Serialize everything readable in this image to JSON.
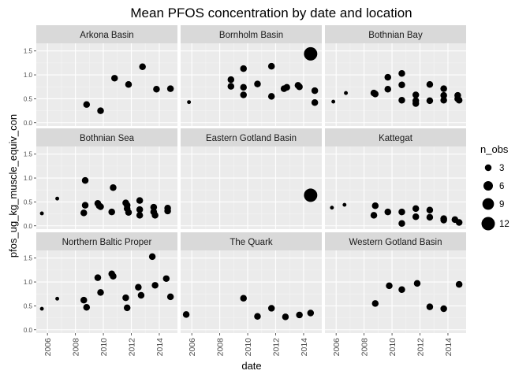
{
  "chart_data": {
    "type": "scatter",
    "title": "Mean PFOS concentration by date and location",
    "xlabel": "date",
    "ylabel": "pfos_ug_kg_muscle_equiv_con",
    "xlim": [
      2005.2,
      2015.3
    ],
    "ylim": [
      -0.07,
      1.66
    ],
    "x_ticks": [
      2006,
      2008,
      2010,
      2012,
      2014
    ],
    "x_tick_labels": [
      "2006",
      "2008",
      "2010",
      "2012",
      "2014"
    ],
    "y_ticks": [
      0.0,
      0.5,
      1.0,
      1.5
    ],
    "y_tick_labels": [
      "0.0",
      "0.5",
      "1.0",
      "1.5"
    ],
    "grid": true,
    "legend": {
      "title": "n_obs",
      "position": "right",
      "entries": [
        {
          "label": "3",
          "size": 3
        },
        {
          "label": "6",
          "size": 6
        },
        {
          "label": "9",
          "size": 9
        },
        {
          "label": "12",
          "size": 12
        }
      ]
    },
    "facets": [
      {
        "name": "Arkona Basin",
        "points": [
          {
            "x": 2008.8,
            "y": 0.38,
            "n": 3
          },
          {
            "x": 2009.8,
            "y": 0.25,
            "n": 3
          },
          {
            "x": 2010.8,
            "y": 0.93,
            "n": 3
          },
          {
            "x": 2011.8,
            "y": 0.8,
            "n": 3
          },
          {
            "x": 2012.8,
            "y": 1.17,
            "n": 3
          },
          {
            "x": 2013.8,
            "y": 0.7,
            "n": 3
          },
          {
            "x": 2014.8,
            "y": 0.71,
            "n": 3
          }
        ]
      },
      {
        "name": "Bornholm Basin",
        "points": [
          {
            "x": 2005.8,
            "y": 0.43,
            "n": 1
          },
          {
            "x": 2008.8,
            "y": 0.9,
            "n": 3
          },
          {
            "x": 2008.8,
            "y": 0.76,
            "n": 3
          },
          {
            "x": 2009.7,
            "y": 1.13,
            "n": 3
          },
          {
            "x": 2009.7,
            "y": 0.74,
            "n": 3
          },
          {
            "x": 2009.7,
            "y": 0.58,
            "n": 3
          },
          {
            "x": 2010.7,
            "y": 0.81,
            "n": 3
          },
          {
            "x": 2011.7,
            "y": 1.18,
            "n": 3
          },
          {
            "x": 2011.7,
            "y": 0.55,
            "n": 3
          },
          {
            "x": 2012.6,
            "y": 0.71,
            "n": 3
          },
          {
            "x": 2012.8,
            "y": 0.74,
            "n": 3
          },
          {
            "x": 2013.6,
            "y": 0.78,
            "n": 3
          },
          {
            "x": 2013.7,
            "y": 0.75,
            "n": 3
          },
          {
            "x": 2014.5,
            "y": 1.44,
            "n": 12
          },
          {
            "x": 2014.8,
            "y": 0.67,
            "n": 3
          },
          {
            "x": 2014.8,
            "y": 0.42,
            "n": 3
          }
        ]
      },
      {
        "name": "Bothnian Bay",
        "points": [
          {
            "x": 2005.8,
            "y": 0.44,
            "n": 1
          },
          {
            "x": 2006.7,
            "y": 0.62,
            "n": 1
          },
          {
            "x": 2008.7,
            "y": 0.62,
            "n": 3
          },
          {
            "x": 2008.8,
            "y": 0.6,
            "n": 3
          },
          {
            "x": 2009.7,
            "y": 0.95,
            "n": 3
          },
          {
            "x": 2009.7,
            "y": 0.7,
            "n": 3
          },
          {
            "x": 2010.7,
            "y": 1.03,
            "n": 3
          },
          {
            "x": 2010.7,
            "y": 0.79,
            "n": 3
          },
          {
            "x": 2010.7,
            "y": 0.47,
            "n": 3
          },
          {
            "x": 2011.7,
            "y": 0.58,
            "n": 3
          },
          {
            "x": 2011.7,
            "y": 0.46,
            "n": 3
          },
          {
            "x": 2011.7,
            "y": 0.4,
            "n": 3
          },
          {
            "x": 2012.7,
            "y": 0.8,
            "n": 3
          },
          {
            "x": 2012.7,
            "y": 0.46,
            "n": 3
          },
          {
            "x": 2013.7,
            "y": 0.71,
            "n": 3
          },
          {
            "x": 2013.7,
            "y": 0.57,
            "n": 3
          },
          {
            "x": 2013.7,
            "y": 0.47,
            "n": 3
          },
          {
            "x": 2014.7,
            "y": 0.57,
            "n": 3
          },
          {
            "x": 2014.7,
            "y": 0.5,
            "n": 3
          },
          {
            "x": 2014.8,
            "y": 0.47,
            "n": 3
          }
        ]
      },
      {
        "name": "Bothnian Sea",
        "points": [
          {
            "x": 2005.6,
            "y": 0.26,
            "n": 1
          },
          {
            "x": 2006.7,
            "y": 0.57,
            "n": 1
          },
          {
            "x": 2008.7,
            "y": 0.95,
            "n": 3
          },
          {
            "x": 2008.7,
            "y": 0.43,
            "n": 3
          },
          {
            "x": 2008.6,
            "y": 0.27,
            "n": 3
          },
          {
            "x": 2009.6,
            "y": 0.47,
            "n": 3
          },
          {
            "x": 2009.7,
            "y": 0.42,
            "n": 3
          },
          {
            "x": 2009.8,
            "y": 0.4,
            "n": 3
          },
          {
            "x": 2010.7,
            "y": 0.8,
            "n": 3
          },
          {
            "x": 2010.6,
            "y": 0.29,
            "n": 3
          },
          {
            "x": 2011.6,
            "y": 0.48,
            "n": 3
          },
          {
            "x": 2011.7,
            "y": 0.43,
            "n": 3
          },
          {
            "x": 2011.7,
            "y": 0.36,
            "n": 3
          },
          {
            "x": 2011.8,
            "y": 0.28,
            "n": 3
          },
          {
            "x": 2012.6,
            "y": 0.53,
            "n": 3
          },
          {
            "x": 2012.6,
            "y": 0.34,
            "n": 3
          },
          {
            "x": 2012.6,
            "y": 0.22,
            "n": 3
          },
          {
            "x": 2013.6,
            "y": 0.39,
            "n": 3
          },
          {
            "x": 2013.6,
            "y": 0.29,
            "n": 3
          },
          {
            "x": 2013.7,
            "y": 0.22,
            "n": 3
          },
          {
            "x": 2014.6,
            "y": 0.37,
            "n": 3
          },
          {
            "x": 2014.6,
            "y": 0.31,
            "n": 3
          }
        ]
      },
      {
        "name": "Eastern Gotland Basin",
        "points": [
          {
            "x": 2014.5,
            "y": 0.64,
            "n": 12
          }
        ]
      },
      {
        "name": "Kattegat",
        "points": [
          {
            "x": 2005.7,
            "y": 0.38,
            "n": 1
          },
          {
            "x": 2006.6,
            "y": 0.44,
            "n": 1
          },
          {
            "x": 2008.8,
            "y": 0.42,
            "n": 3
          },
          {
            "x": 2008.7,
            "y": 0.22,
            "n": 3
          },
          {
            "x": 2009.7,
            "y": 0.29,
            "n": 3
          },
          {
            "x": 2010.7,
            "y": 0.29,
            "n": 3
          },
          {
            "x": 2010.7,
            "y": 0.05,
            "n": 3
          },
          {
            "x": 2011.7,
            "y": 0.36,
            "n": 3
          },
          {
            "x": 2011.7,
            "y": 0.19,
            "n": 3
          },
          {
            "x": 2012.7,
            "y": 0.33,
            "n": 3
          },
          {
            "x": 2012.7,
            "y": 0.18,
            "n": 3
          },
          {
            "x": 2013.7,
            "y": 0.15,
            "n": 3
          },
          {
            "x": 2013.7,
            "y": 0.12,
            "n": 3
          },
          {
            "x": 2014.5,
            "y": 0.13,
            "n": 3
          },
          {
            "x": 2014.8,
            "y": 0.07,
            "n": 3
          }
        ]
      },
      {
        "name": "Northern Baltic Proper",
        "points": [
          {
            "x": 2005.6,
            "y": 0.44,
            "n": 1
          },
          {
            "x": 2006.7,
            "y": 0.65,
            "n": 1
          },
          {
            "x": 2008.6,
            "y": 0.62,
            "n": 3
          },
          {
            "x": 2008.8,
            "y": 0.47,
            "n": 3
          },
          {
            "x": 2009.6,
            "y": 1.09,
            "n": 3
          },
          {
            "x": 2009.8,
            "y": 0.78,
            "n": 3
          },
          {
            "x": 2010.6,
            "y": 1.17,
            "n": 3
          },
          {
            "x": 2010.7,
            "y": 1.12,
            "n": 3
          },
          {
            "x": 2011.6,
            "y": 0.67,
            "n": 3
          },
          {
            "x": 2011.7,
            "y": 0.46,
            "n": 3
          },
          {
            "x": 2012.5,
            "y": 0.89,
            "n": 3
          },
          {
            "x": 2012.7,
            "y": 0.72,
            "n": 3
          },
          {
            "x": 2013.5,
            "y": 1.53,
            "n": 3
          },
          {
            "x": 2013.7,
            "y": 0.93,
            "n": 3
          },
          {
            "x": 2014.5,
            "y": 1.07,
            "n": 3
          },
          {
            "x": 2014.8,
            "y": 0.69,
            "n": 3
          }
        ]
      },
      {
        "name": "The Quark",
        "points": [
          {
            "x": 2005.6,
            "y": 0.32,
            "n": 3
          },
          {
            "x": 2009.7,
            "y": 0.66,
            "n": 3
          },
          {
            "x": 2010.7,
            "y": 0.28,
            "n": 3
          },
          {
            "x": 2011.7,
            "y": 0.45,
            "n": 3
          },
          {
            "x": 2012.7,
            "y": 0.27,
            "n": 3
          },
          {
            "x": 2013.7,
            "y": 0.31,
            "n": 3
          },
          {
            "x": 2014.5,
            "y": 0.35,
            "n": 3
          }
        ]
      },
      {
        "name": "Western Gotland Basin",
        "points": [
          {
            "x": 2008.8,
            "y": 0.55,
            "n": 3
          },
          {
            "x": 2009.8,
            "y": 0.92,
            "n": 3
          },
          {
            "x": 2010.7,
            "y": 0.84,
            "n": 3
          },
          {
            "x": 2011.8,
            "y": 0.97,
            "n": 3
          },
          {
            "x": 2012.7,
            "y": 0.48,
            "n": 3
          },
          {
            "x": 2013.7,
            "y": 0.44,
            "n": 3
          },
          {
            "x": 2014.8,
            "y": 0.95,
            "n": 3
          }
        ]
      }
    ]
  }
}
